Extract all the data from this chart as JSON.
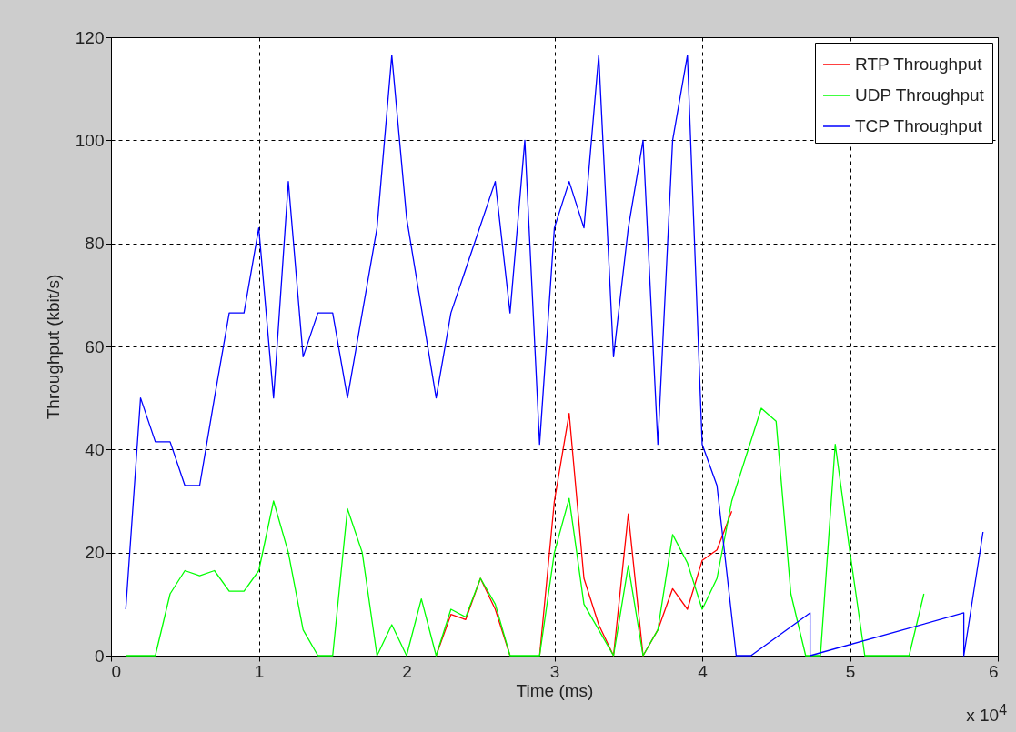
{
  "chart_data": {
    "type": "line",
    "xlabel": "Time (ms)",
    "ylabel": "Throughput (kbit/s)",
    "annotations": [
      "x 10$^{4}$"
    ],
    "xlim": [
      0,
      6
    ],
    "ylim": [
      0,
      120
    ],
    "xticks": [
      0,
      1,
      2,
      3,
      4,
      5,
      6
    ],
    "yticks": [
      0,
      20,
      40,
      60,
      80,
      100,
      120
    ],
    "grid": true,
    "legend": "top right",
    "series": [
      {
        "name": "RTP Throughput",
        "color": "#ff0000",
        "x": [
          2.2,
          2.3,
          2.4,
          2.5,
          2.6,
          2.7,
          2.8,
          2.9,
          3.0,
          3.1,
          3.2,
          3.3,
          3.4,
          3.5,
          3.6,
          3.7,
          3.8,
          3.9,
          4.0,
          4.1,
          4.2
        ],
        "values": [
          0,
          8,
          7,
          15,
          9,
          0,
          null,
          0,
          30,
          47,
          15,
          6,
          0,
          27.5,
          0,
          5,
          13,
          9,
          18.5,
          20.5,
          28
        ]
      },
      {
        "name": "UDP Throughput",
        "color": "#00ff00",
        "x": [
          0.1,
          0.2,
          0.3,
          0.4,
          0.5,
          0.6,
          0.7,
          0.8,
          0.9,
          1.0,
          1.1,
          1.2,
          1.3,
          1.4,
          1.5,
          1.6,
          1.7,
          1.8,
          1.9,
          2.0,
          2.1,
          2.2,
          2.3,
          2.4,
          2.5,
          2.6,
          2.7,
          2.8,
          2.9,
          3.0,
          3.1,
          3.2,
          3.3,
          3.4,
          3.5,
          3.6,
          3.7,
          3.8,
          3.9,
          4.0,
          4.1,
          4.2,
          4.3,
          4.4,
          4.5,
          4.6,
          4.7,
          4.8,
          4.9,
          5.0,
          5.1,
          5.2,
          5.3,
          5.4,
          5.5
        ],
        "values": [
          0,
          0,
          0,
          12,
          16.5,
          15.5,
          16.5,
          12.5,
          12.5,
          16.5,
          30,
          20,
          5,
          0,
          0,
          28.5,
          20,
          0,
          6,
          0,
          11,
          0,
          9,
          7.5,
          15,
          10,
          0,
          0,
          0,
          20,
          30.5,
          10,
          5,
          0,
          17.5,
          0,
          5,
          23.5,
          18,
          9,
          15,
          30,
          39,
          48,
          45.5,
          12,
          0,
          0,
          41,
          20,
          0,
          0,
          0,
          0,
          12
        ]
      },
      {
        "name": "TCP Throughput",
        "color": "#0000ff",
        "x": [
          0.1,
          0.2,
          0.3,
          0.4,
          0.5,
          0.6,
          0.7,
          0.8,
          0.9,
          1.0,
          1.1,
          1.2,
          1.3,
          1.4,
          1.5,
          1.6,
          1.7,
          1.8,
          1.9,
          2.0,
          2.2,
          2.3,
          2.6,
          2.7,
          2.8,
          2.9,
          3.0,
          3.1,
          3.2,
          3.3,
          3.4,
          3.5,
          3.6,
          3.7,
          3.8,
          3.9,
          4.0,
          4.1,
          4.23,
          4.33,
          4.73,
          4.73,
          5.77,
          5.77,
          5.9
        ],
        "values": [
          9,
          50,
          41.5,
          41.5,
          33,
          33,
          50,
          66.5,
          66.5,
          83,
          50,
          92,
          58,
          66.5,
          66.5,
          50,
          66.5,
          83,
          116.5,
          85,
          50,
          66.5,
          92,
          66.5,
          100,
          41,
          83,
          92,
          83,
          116.5,
          58,
          83,
          100,
          41,
          100,
          116.5,
          41,
          33,
          0,
          0,
          8.3,
          0,
          8.3,
          0,
          24
        ]
      }
    ]
  }
}
